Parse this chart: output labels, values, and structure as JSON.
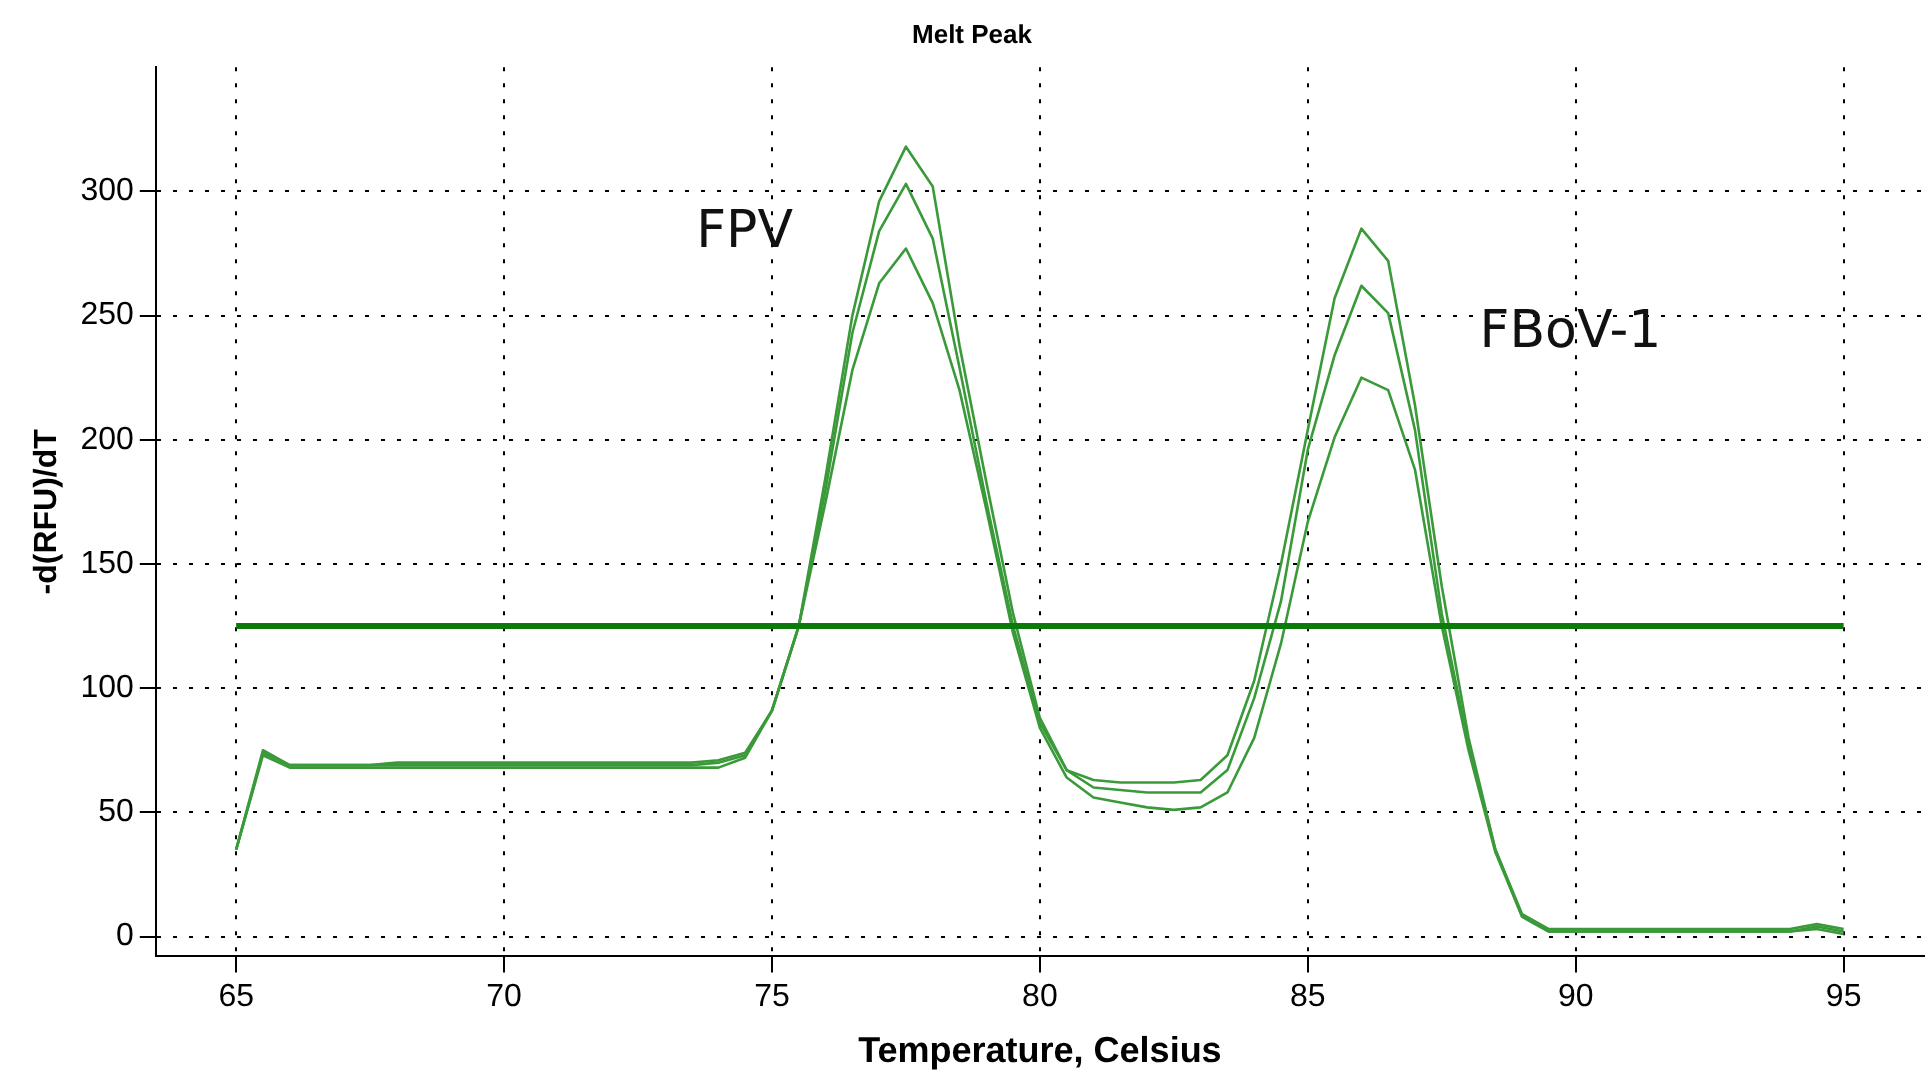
{
  "chart_data": {
    "type": "line",
    "title": "Melt Peak",
    "xlabel": "Temperature, Celsius",
    "ylabel": "-d(RFU)/dT",
    "x": [
      65,
      65.5,
      66,
      66.5,
      67,
      67.5,
      68,
      68.5,
      69,
      69.5,
      70,
      70.5,
      71,
      71.5,
      72,
      72.5,
      73,
      73.5,
      74,
      74.5,
      75,
      75.5,
      76,
      76.5,
      77,
      77.5,
      78,
      78.5,
      79,
      79.5,
      80,
      80.5,
      81,
      81.5,
      82,
      82.5,
      83,
      83.5,
      84,
      84.5,
      85,
      85.5,
      86,
      86.5,
      87,
      87.5,
      88,
      88.5,
      89,
      89.5,
      90,
      90.5,
      91,
      91.5,
      92,
      92.5,
      93,
      93.5,
      94,
      94.5,
      95
    ],
    "series": [
      {
        "color": "#3a9a3a",
        "values": [
          35,
          75,
          69,
          69,
          69,
          69,
          70,
          70,
          70,
          70,
          70,
          70,
          70,
          70,
          70,
          70,
          70,
          70,
          71,
          74,
          91,
          125,
          185,
          250,
          296,
          318,
          302,
          238,
          183,
          130,
          88,
          67,
          63,
          62,
          62,
          62,
          63,
          73,
          103,
          150,
          204,
          257,
          285,
          272,
          214,
          141,
          80,
          35,
          9,
          3,
          3,
          3,
          3,
          3,
          3,
          3,
          3,
          3,
          3,
          5,
          3
        ]
      },
      {
        "color": "#3a9a3a",
        "values": [
          35,
          74,
          69,
          69,
          69,
          69,
          69,
          69,
          69,
          69,
          69,
          69,
          69,
          69,
          69,
          69,
          69,
          69,
          70,
          73,
          91,
          125,
          180,
          243,
          284,
          303,
          281,
          229,
          175,
          125,
          86,
          67,
          60,
          59,
          58,
          58,
          58,
          67,
          96,
          135,
          196,
          234,
          262,
          251,
          204,
          130,
          77,
          35,
          8,
          2,
          2,
          2,
          2,
          2,
          2,
          2,
          2,
          2,
          2,
          4,
          2
        ]
      },
      {
        "color": "#3a9a3a",
        "values": [
          35,
          73,
          68,
          68,
          68,
          68,
          68,
          68,
          68,
          68,
          68,
          68,
          68,
          68,
          68,
          68,
          68,
          68,
          68,
          72,
          91,
          125,
          175,
          228,
          263,
          277,
          255,
          220,
          172,
          122,
          84,
          64,
          56,
          54,
          52,
          51,
          52,
          58,
          80,
          118,
          167,
          201,
          225,
          220,
          188,
          125,
          75,
          34,
          8,
          2,
          2,
          2,
          2,
          2,
          2,
          2,
          2,
          2,
          2,
          3,
          1
        ]
      }
    ],
    "xlim": [
      63.5,
      96.5
    ],
    "xticks": [
      65,
      70,
      75,
      80,
      85,
      90,
      95
    ],
    "ylim": [
      -8,
      350
    ],
    "yticks": [
      0,
      50,
      100,
      150,
      200,
      250,
      300
    ],
    "grid": true,
    "legend": false,
    "marker": "none",
    "line_style": "solid",
    "ref_lines": [
      {
        "axis": "y",
        "value": 125,
        "color": "#0b7a0b"
      }
    ],
    "annotations": [
      "FPV",
      "FBoV-1"
    ]
  }
}
